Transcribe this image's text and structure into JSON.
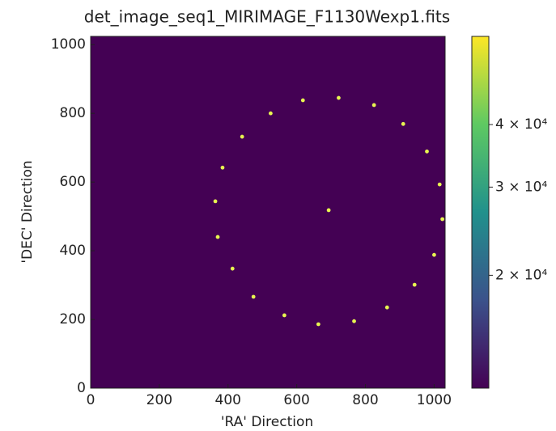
{
  "chart_data": {
    "type": "image",
    "title": "det_image_seq1_MIRIMAGE_F1130Wexp1.fits",
    "x_label": "'RA' Direction",
    "y_label": "'DEC' Direction",
    "background_color": "#440154",
    "source_color": "#e8f550",
    "x": [
      618,
      722,
      825,
      910,
      979,
      1016,
      1024,
      1000,
      943,
      863,
      767,
      663,
      564,
      474,
      413,
      370,
      363,
      384,
      441,
      524,
      693
    ],
    "y": [
      838,
      845,
      824,
      769,
      689,
      593,
      492,
      388,
      301,
      235,
      195,
      186,
      212,
      266,
      348,
      440,
      544,
      642,
      732,
      800,
      518
    ],
    "xlim": [
      0,
      1032
    ],
    "ylim": [
      0,
      1024
    ],
    "xticks": [
      0,
      200,
      400,
      600,
      800,
      1000
    ],
    "yticks": [
      0,
      200,
      400,
      600,
      800,
      1000
    ],
    "colorbar": {
      "log": true,
      "lim": [
        11900,
        60000
      ],
      "ticks": [
        {
          "value": 20000,
          "label": "2 × 10⁴"
        },
        {
          "value": 30000,
          "label": "3 × 10⁴"
        },
        {
          "value": 40000,
          "label": "4 × 10⁴"
        }
      ],
      "colormap": [
        "#440154",
        "#3b528b",
        "#21918c",
        "#5ec962",
        "#fde725"
      ]
    }
  }
}
